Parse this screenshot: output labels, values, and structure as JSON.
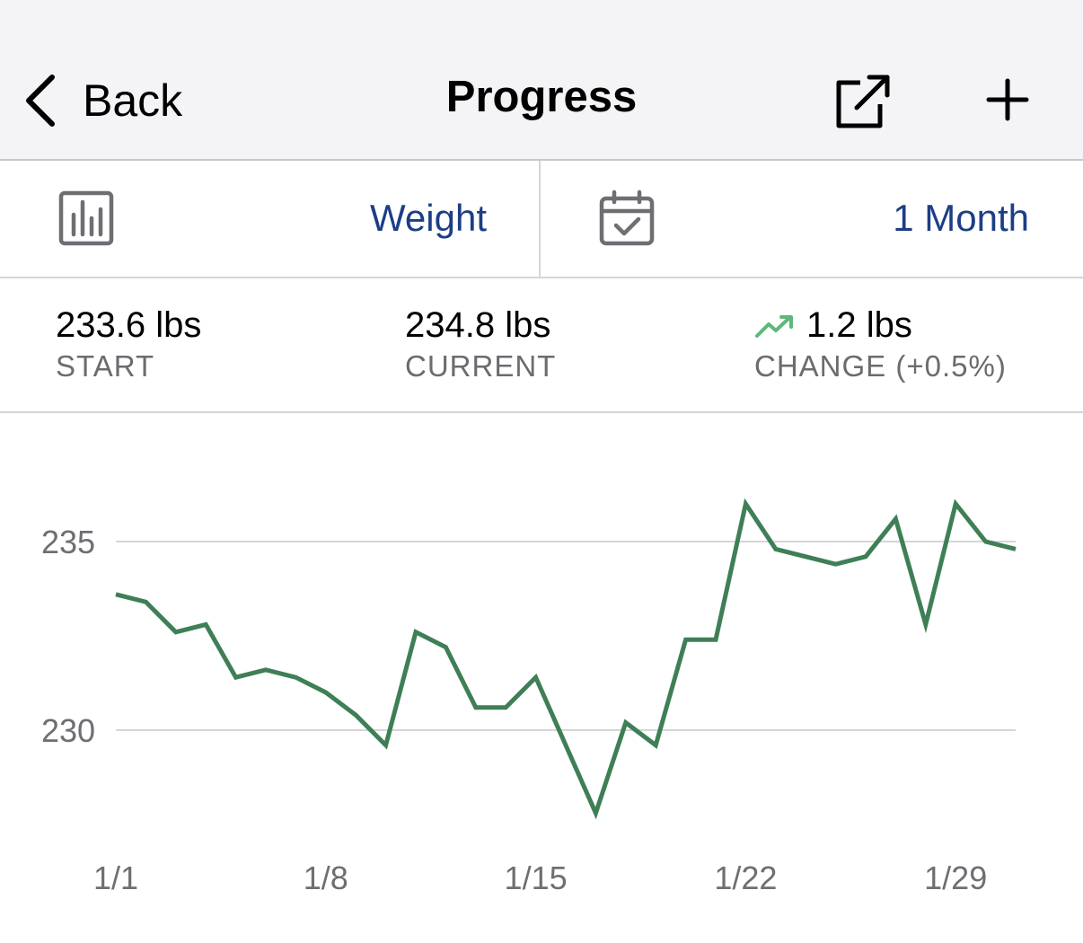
{
  "navbar": {
    "back_label": "Back",
    "title": "Progress",
    "back_icon": "chevron-left-icon",
    "share_icon": "share-external-icon",
    "add_icon": "plus-icon"
  },
  "selectors": {
    "metric_label": "Weight",
    "metric_icon": "bar-chart-icon",
    "range_label": "1 Month",
    "range_icon": "calendar-check-icon",
    "accent_color": "#1c3e86"
  },
  "stats": {
    "start": {
      "value": "233.6 lbs",
      "label": "START"
    },
    "current": {
      "value": "234.8 lbs",
      "label": "CURRENT"
    },
    "change": {
      "value": "1.2 lbs",
      "label": "CHANGE (+0.5%)",
      "icon": "trending-up-icon",
      "icon_color": "#5cb97a"
    }
  },
  "chart_data": {
    "type": "line",
    "title": "",
    "xlabel": "",
    "ylabel": "",
    "ylim": [
      227.6,
      236.4
    ],
    "grid": true,
    "line_color": "#3f7f56",
    "x_ticks": [
      "1/1",
      "1/8",
      "1/15",
      "1/22",
      "1/29"
    ],
    "y_ticks": [
      230,
      235
    ],
    "x": [
      "1/1",
      "1/2",
      "1/3",
      "1/4",
      "1/5",
      "1/6",
      "1/7",
      "1/8",
      "1/9",
      "1/10",
      "1/11",
      "1/12",
      "1/13",
      "1/14",
      "1/15",
      "1/16",
      "1/17",
      "1/18",
      "1/19",
      "1/20",
      "1/21",
      "1/22",
      "1/23",
      "1/24",
      "1/25",
      "1/26",
      "1/27",
      "1/28",
      "1/29",
      "1/30",
      "1/31"
    ],
    "values": [
      233.6,
      233.4,
      232.6,
      232.8,
      231.4,
      231.6,
      231.4,
      231.0,
      230.4,
      229.6,
      232.6,
      232.2,
      230.6,
      230.6,
      231.4,
      229.6,
      227.8,
      230.2,
      229.6,
      232.4,
      232.4,
      236.0,
      234.8,
      234.6,
      234.4,
      234.6,
      235.6,
      232.8,
      236.0,
      235.0,
      234.8
    ]
  }
}
